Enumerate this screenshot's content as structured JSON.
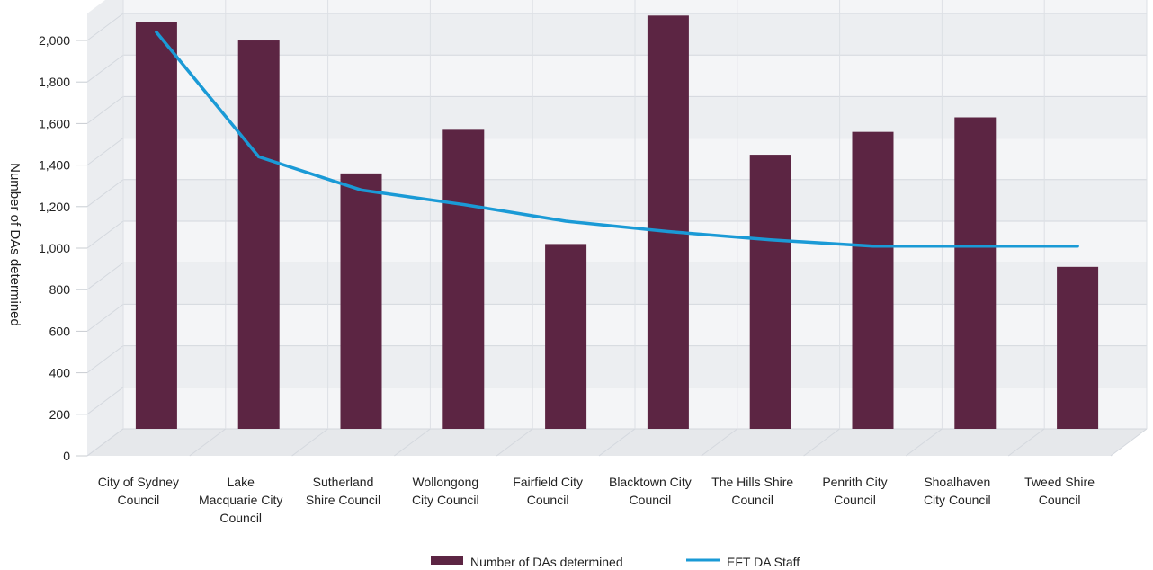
{
  "chart_data": {
    "type": "bar",
    "categories": [
      [
        "City of Sydney",
        "Council"
      ],
      [
        "Lake",
        "Macquarie City",
        "Council"
      ],
      [
        "Sutherland",
        "Shire Council"
      ],
      [
        "Wollongong",
        "City Council"
      ],
      [
        "Fairfield City",
        "Council"
      ],
      [
        "Blacktown City",
        "Council"
      ],
      [
        "The Hills Shire",
        "Council"
      ],
      [
        "Penrith City",
        "Council"
      ],
      [
        "Shoalhaven",
        "City Council"
      ],
      [
        "Tweed Shire",
        "Council"
      ]
    ],
    "series": [
      {
        "name": "Number of DAs determined",
        "type": "bar",
        "color": "#5c2543",
        "values": [
          1960,
          1870,
          1230,
          1440,
          890,
          1990,
          1320,
          1430,
          1500,
          780
        ]
      },
      {
        "name": "EFT DA Staff",
        "type": "line",
        "color": "#1a9ad6",
        "values": [
          1910,
          1310,
          1150,
          1080,
          1000,
          950,
          910,
          880,
          880,
          880
        ]
      }
    ],
    "ylabel": "Number of DAs determined",
    "xlabel": "",
    "ylim": [
      0,
      2000
    ],
    "yticks": [
      "0",
      "200",
      "400",
      "600",
      "800",
      "1,000",
      "1,200",
      "1,400",
      "1,600",
      "1,800",
      "2,000"
    ],
    "grid": true,
    "legend": "bottom"
  }
}
